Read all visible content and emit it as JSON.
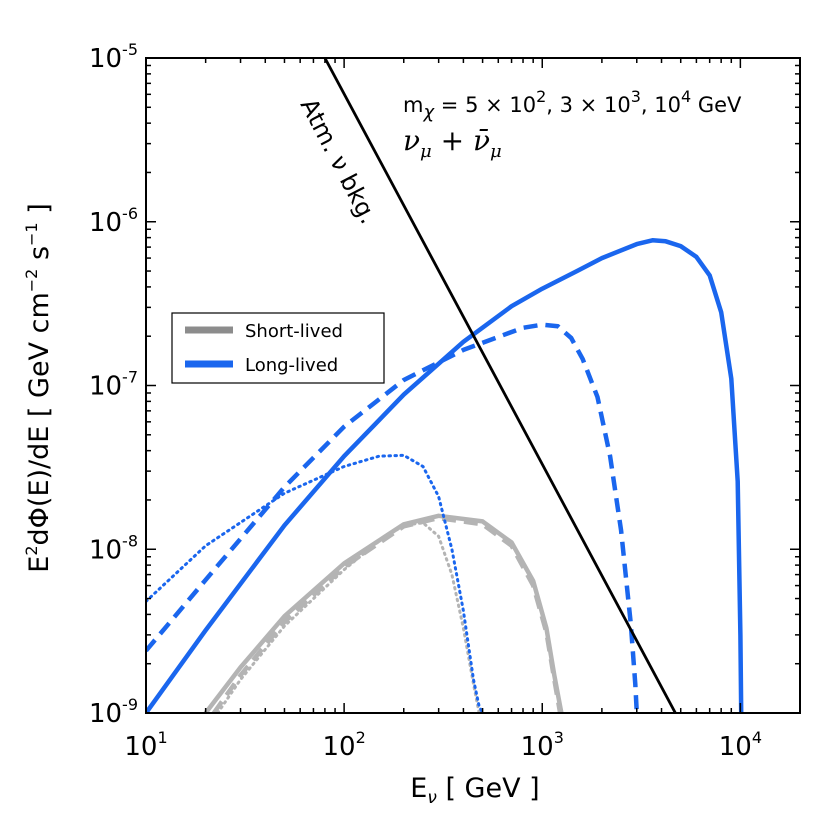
{
  "chart_data": {
    "type": "line",
    "xscale": "log",
    "yscale": "log",
    "xlim": [
      10,
      20000
    ],
    "ylim": [
      1e-09,
      1e-05
    ],
    "x_ticks": [
      {
        "value": 10,
        "base": "10",
        "exp": "1"
      },
      {
        "value": 100,
        "base": "10",
        "exp": "2"
      },
      {
        "value": 1000,
        "base": "10",
        "exp": "3"
      },
      {
        "value": 10000,
        "base": "10",
        "exp": "4"
      }
    ],
    "y_ticks": [
      {
        "value": 1e-09,
        "base": "10",
        "exp": "-9"
      },
      {
        "value": 1e-08,
        "base": "10",
        "exp": "-8"
      },
      {
        "value": 1e-07,
        "base": "10",
        "exp": "-7"
      },
      {
        "value": 1e-06,
        "base": "10",
        "exp": "-6"
      },
      {
        "value": 1e-05,
        "base": "10",
        "exp": "-5"
      }
    ],
    "xlabel": {
      "main": "E",
      "sub": "ν",
      "unit": " [ GeV ]"
    },
    "ylabel": {
      "prefix": "E",
      "sup1": "2",
      "mid": "dΦ(E)/dE [ GeV cm",
      "sup2": "−2",
      "mid2": " s",
      "sup3": "−1",
      "suffix": " ]"
    },
    "annotation": {
      "line1_prefix": "m",
      "line1_sub": "χ",
      "line1_text": " = 5 × 10",
      "line1_exp1": "2",
      "line1_mid": ", 3 × 10",
      "line1_exp2": "3",
      "line1_mid2": ", 10",
      "line1_exp3": "4",
      "line1_unit": " GeV",
      "line2": "νμ + ν̄μ",
      "line2_a": "ν",
      "line2_a_sub": "μ",
      "line2_plus": " + ",
      "line2_b": "ν̄",
      "line2_b_sub": "μ"
    },
    "background_label": "Atm. ν bkg.",
    "legend": {
      "position": "center-left",
      "entries": [
        {
          "label": "Short-lived",
          "color": "#8c8c8c"
        },
        {
          "label": "Long-lived",
          "color": "#1a66ee"
        }
      ]
    },
    "colors": {
      "blue": "#1a66ee",
      "gray": "#b4b4b4",
      "black": "#000000"
    },
    "series": [
      {
        "name": "Atm. ν bkg.",
        "color": "#000000",
        "style": "solid",
        "x": [
          80,
          4700
        ],
        "y": [
          1e-05,
          1e-09
        ]
      },
      {
        "name": "Long-lived m=10^4 GeV",
        "color": "#1a66ee",
        "style": "solid",
        "x": [
          10,
          20,
          50,
          100,
          200,
          400,
          700,
          1000,
          1500,
          2000,
          3000,
          3600,
          4200,
          5000,
          6000,
          7000,
          8000,
          9000,
          9700,
          10000,
          10100
        ],
        "y": [
          1e-09,
          3.2e-09,
          1.4e-08,
          3.7e-08,
          8.8e-08,
          1.85e-07,
          3.05e-07,
          3.9e-07,
          5e-07,
          6e-07,
          7.3e-07,
          7.7e-07,
          7.6e-07,
          7.1e-07,
          6.1e-07,
          4.7e-07,
          2.8e-07,
          1.1e-07,
          2.6e-08,
          3e-09,
          1e-09
        ]
      },
      {
        "name": "Long-lived m=3×10^3 GeV",
        "color": "#1a66ee",
        "style": "dashed",
        "x": [
          10,
          20,
          50,
          100,
          200,
          400,
          600,
          800,
          1000,
          1200,
          1400,
          1600,
          1900,
          2200,
          2500,
          2800,
          2950,
          3000
        ],
        "y": [
          2.4e-09,
          6.5e-09,
          2.4e-08,
          5.6e-08,
          1.08e-07,
          1.65e-07,
          1.98e-07,
          2.25e-07,
          2.35e-07,
          2.3e-07,
          1.95e-07,
          1.45e-07,
          8.5e-08,
          3.7e-08,
          1.3e-08,
          3.5e-09,
          1.5e-09,
          1e-09
        ]
      },
      {
        "name": "Long-lived m=5×10^2 GeV",
        "color": "#1a66ee",
        "style": "dotted",
        "x": [
          10,
          20,
          50,
          100,
          150,
          200,
          250,
          300,
          350,
          400,
          450,
          480,
          500
        ],
        "y": [
          4.8e-09,
          1.05e-08,
          2.2e-08,
          3.2e-08,
          3.7e-08,
          3.75e-08,
          3.2e-08,
          2.1e-08,
          1e-08,
          4.2e-09,
          1.6e-09,
          1.1e-09,
          1e-09
        ]
      },
      {
        "name": "Short-lived m=10^4 GeV",
        "color": "#b4b4b4",
        "style": "solid",
        "x": [
          20,
          30,
          50,
          100,
          200,
          300,
          500,
          700,
          900,
          1050,
          1150,
          1250
        ],
        "y": [
          1e-09,
          1.9e-09,
          3.9e-09,
          8.2e-09,
          1.42e-08,
          1.6e-08,
          1.48e-08,
          1.1e-08,
          6.4e-09,
          3.3e-09,
          1.7e-09,
          1e-09
        ]
      },
      {
        "name": "Short-lived m=3×10^3 GeV",
        "color": "#b4b4b4",
        "style": "dashed",
        "x": [
          22,
          30,
          50,
          100,
          200,
          300,
          500,
          700,
          900,
          1050,
          1150,
          1230
        ],
        "y": [
          1e-09,
          1.7e-09,
          3.6e-09,
          7.8e-09,
          1.38e-08,
          1.55e-08,
          1.42e-08,
          1.05e-08,
          6e-09,
          3.1e-09,
          1.6e-09,
          1e-09
        ]
      },
      {
        "name": "Short-lived m=5×10^2 GeV",
        "color": "#b4b4b4",
        "style": "dotted",
        "x": [
          23,
          30,
          50,
          100,
          150,
          200,
          250,
          300,
          350,
          400,
          450,
          480
        ],
        "y": [
          1e-09,
          1.6e-09,
          3.4e-09,
          7.5e-09,
          1.12e-08,
          1.4e-08,
          1.45e-08,
          1.2e-08,
          7e-09,
          3.3e-09,
          1.5e-09,
          1e-09
        ]
      }
    ]
  }
}
